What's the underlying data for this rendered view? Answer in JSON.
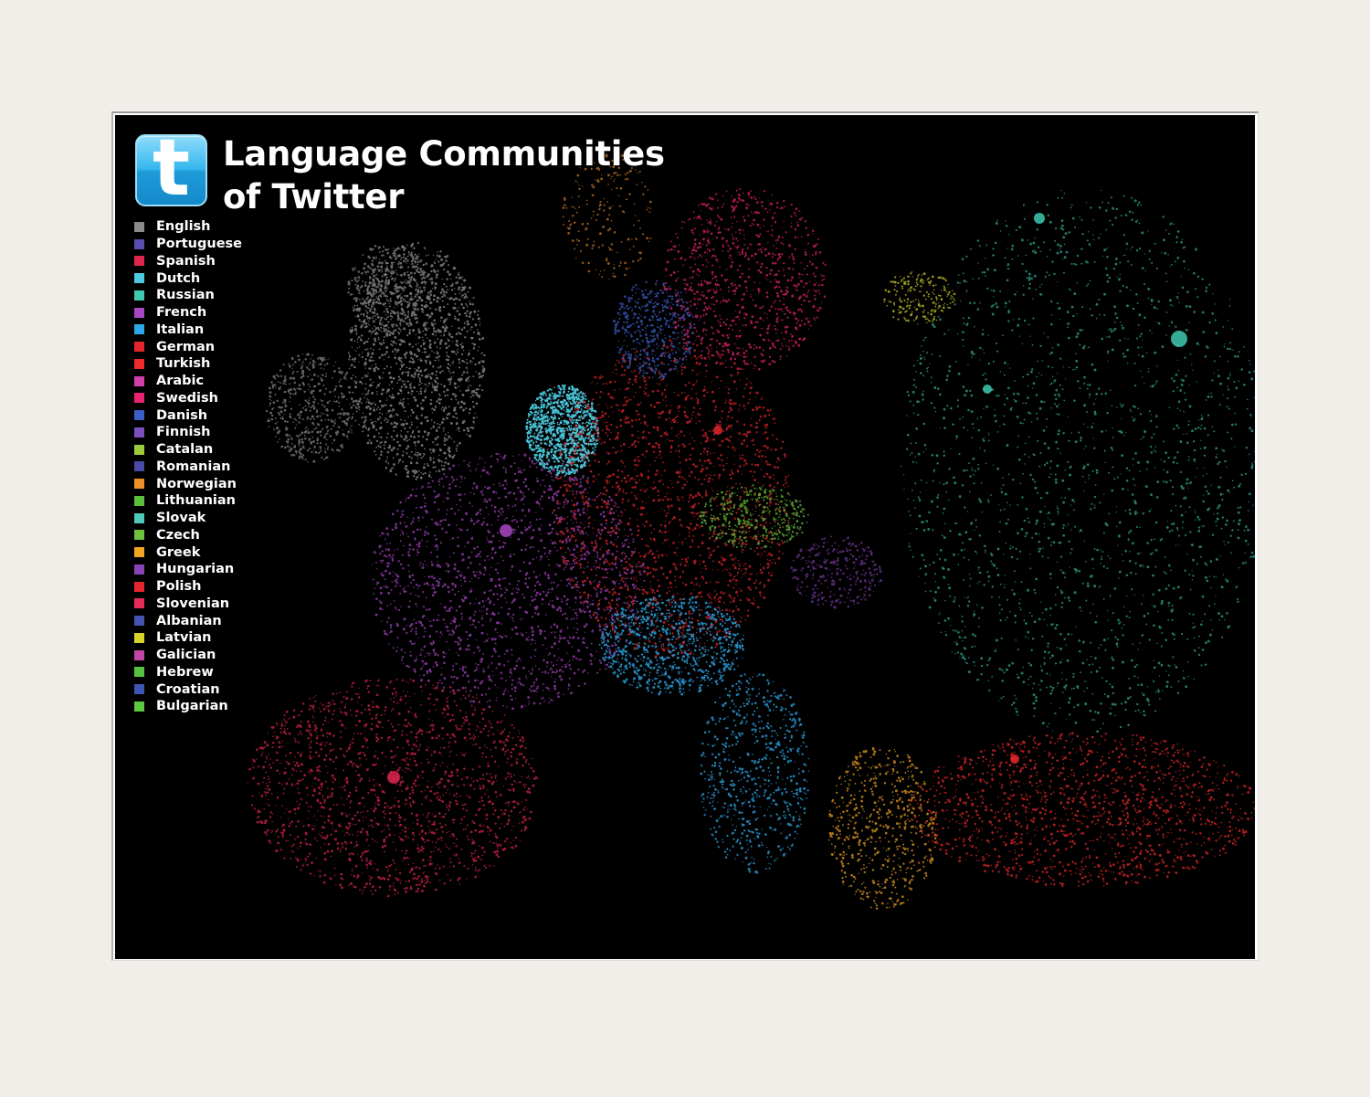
{
  "title_line1": "Language Communities",
  "title_line2": "of Twitter",
  "logo": {
    "icon": "twitter-bird-logo-icon",
    "glyph": "t"
  },
  "legend": [
    {
      "label": "English",
      "color": "#8a8a8a"
    },
    {
      "label": "Portuguese",
      "color": "#5a4fb0"
    },
    {
      "label": "Spanish",
      "color": "#e0264f"
    },
    {
      "label": "Dutch",
      "color": "#4ccbe0"
    },
    {
      "label": "Russian",
      "color": "#3fc9b0"
    },
    {
      "label": "French",
      "color": "#a946c4"
    },
    {
      "label": "Italian",
      "color": "#2ea7e8"
    },
    {
      "label": "German",
      "color": "#e5262e"
    },
    {
      "label": "Turkish",
      "color": "#ee2a2a"
    },
    {
      "label": "Arabic",
      "color": "#d03fa8"
    },
    {
      "label": "Swedish",
      "color": "#e82471"
    },
    {
      "label": "Danish",
      "color": "#3b5fc4"
    },
    {
      "label": "Finnish",
      "color": "#7c4fbf"
    },
    {
      "label": "Catalan",
      "color": "#9ccc3a"
    },
    {
      "label": "Romanian",
      "color": "#4a4aa8"
    },
    {
      "label": "Norwegian",
      "color": "#ef8f2a"
    },
    {
      "label": "Lithuanian",
      "color": "#5bbf3e"
    },
    {
      "label": "Slovak",
      "color": "#4fcab8"
    },
    {
      "label": "Czech",
      "color": "#6ec43c"
    },
    {
      "label": "Greek",
      "color": "#f2a623"
    },
    {
      "label": "Hungarian",
      "color": "#8b44b8"
    },
    {
      "label": "Polish",
      "color": "#e8242d"
    },
    {
      "label": "Slovenian",
      "color": "#e62a5a"
    },
    {
      "label": "Albanian",
      "color": "#4452b0"
    },
    {
      "label": "Latvian",
      "color": "#d6d42a"
    },
    {
      "label": "Galician",
      "color": "#c246a8"
    },
    {
      "label": "Hebrew",
      "color": "#57c241"
    },
    {
      "label": "Croatian",
      "color": "#3f55b4"
    },
    {
      "label": "Bulgarian",
      "color": "#5cc83f"
    }
  ],
  "map_colors": {
    "background": "#000000",
    "uk": "#8a8a8a",
    "iberia": "#e0264f",
    "france": "#a946c4",
    "germany": "#e5262e",
    "netherlands": "#4ccbe0",
    "italy": "#2ea7e8",
    "russia": "#3fc9b0",
    "turkey": "#ee2a2a",
    "sweden": "#e82471",
    "norway": "#ef8f2a",
    "denmark": "#3b5fc4",
    "greece": "#f2a623",
    "czech": "#6ec43c",
    "latvia": "#d6d42a",
    "hungary": "#8b44b8"
  }
}
